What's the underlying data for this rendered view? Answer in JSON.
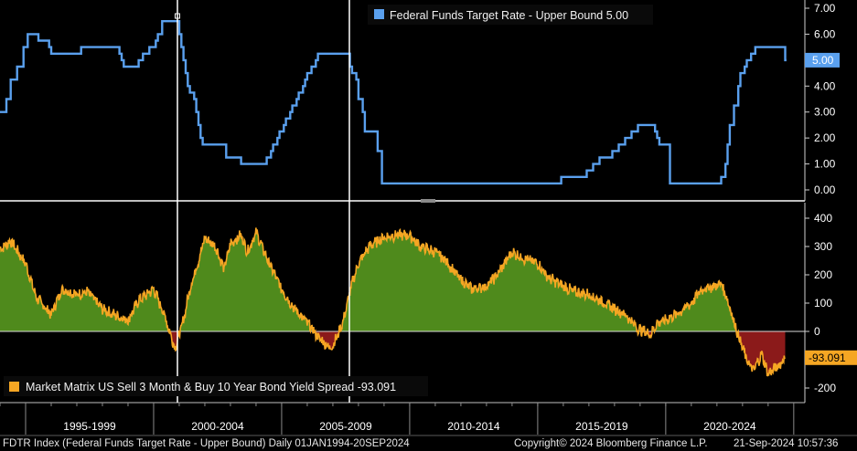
{
  "chart_data": [
    {
      "type": "line",
      "legend": "Federal Funds Target Rate - Upper Bound 5.00",
      "last_value_label": "5.00",
      "color": "#5aa0ee",
      "ylim": [
        -0.3,
        7.05
      ],
      "yticks": [
        "7.00",
        "6.00",
        "5.00",
        "4.00",
        "3.00",
        "2.00",
        "1.00",
        "0.00"
      ],
      "ytick_values": [
        7,
        6,
        5,
        4,
        3,
        2,
        1,
        0
      ],
      "x": [
        "1994-01",
        "1994-04",
        "1994-06",
        "1994-09",
        "1994-12",
        "1995-02",
        "1995-07",
        "1995-12",
        "1996-01",
        "1997-03",
        "1998-09",
        "1998-10",
        "1998-11",
        "1999-06",
        "1999-08",
        "1999-11",
        "2000-02",
        "2000-03",
        "2000-05",
        "2001-01",
        "2001-02",
        "2001-03",
        "2001-04",
        "2001-05",
        "2001-06",
        "2001-08",
        "2001-09",
        "2001-10",
        "2001-11",
        "2001-12",
        "2002-11",
        "2003-06",
        "2004-06",
        "2004-08",
        "2004-09",
        "2004-11",
        "2004-12",
        "2005-02",
        "2005-03",
        "2005-05",
        "2005-06",
        "2005-08",
        "2005-09",
        "2005-11",
        "2005-12",
        "2006-01",
        "2006-03",
        "2006-05",
        "2006-06",
        "2007-09",
        "2007-10",
        "2007-12",
        "2008-01",
        "2008-03",
        "2008-04",
        "2008-10",
        "2008-12",
        "2015-12",
        "2016-12",
        "2017-03",
        "2017-06",
        "2017-12",
        "2018-03",
        "2018-06",
        "2018-09",
        "2018-12",
        "2019-08",
        "2019-09",
        "2019-10",
        "2020-03",
        "2022-03",
        "2022-05",
        "2022-06",
        "2022-07",
        "2022-09",
        "2022-11",
        "2022-12",
        "2023-02",
        "2023-03",
        "2023-05",
        "2023-07",
        "2024-09"
      ],
      "values": [
        3.0,
        3.5,
        4.25,
        4.75,
        5.5,
        6.0,
        5.75,
        5.5,
        5.25,
        5.5,
        5.25,
        5.0,
        4.75,
        5.0,
        5.25,
        5.5,
        5.75,
        6.0,
        6.5,
        6.0,
        5.5,
        5.0,
        4.5,
        4.0,
        3.75,
        3.5,
        3.0,
        2.5,
        2.0,
        1.75,
        1.25,
        1.0,
        1.25,
        1.5,
        1.75,
        2.0,
        2.25,
        2.5,
        2.75,
        3.0,
        3.25,
        3.5,
        3.75,
        4.0,
        4.25,
        4.5,
        4.75,
        5.0,
        5.25,
        4.75,
        4.5,
        4.25,
        3.5,
        3.0,
        2.25,
        1.5,
        0.25,
        0.5,
        0.75,
        1.0,
        1.25,
        1.5,
        1.75,
        2.0,
        2.25,
        2.5,
        2.25,
        2.0,
        1.75,
        0.25,
        0.5,
        1.0,
        1.75,
        2.5,
        3.25,
        4.0,
        4.5,
        4.75,
        5.0,
        5.25,
        5.5,
        5.0
      ]
    },
    {
      "type": "area",
      "legend": "Market Matrix US Sell 3 Month & Buy 10 Year Bond Yield Spread -93.091",
      "last_value_label": "-93.091",
      "color": "#f5a623",
      "positive_fill": "#4f8a1c",
      "negative_fill": "#8b1a1a",
      "ylim": [
        -240,
        420
      ],
      "yticks": [
        "400",
        "300",
        "200",
        "100",
        "0",
        "-100",
        "-200"
      ],
      "ytick_values": [
        400,
        300,
        200,
        100,
        0,
        -100,
        -200
      ],
      "x": [
        "1994-01",
        "1994-06",
        "1995-01",
        "1995-06",
        "1996-01",
        "1996-06",
        "1997-01",
        "1997-06",
        "1998-01",
        "1998-06",
        "1999-01",
        "1999-06",
        "2000-01",
        "2000-06",
        "2000-11",
        "2001-03",
        "2001-06",
        "2001-10",
        "2002-01",
        "2002-06",
        "2002-10",
        "2003-01",
        "2003-06",
        "2003-09",
        "2004-01",
        "2004-06",
        "2005-01",
        "2005-06",
        "2006-01",
        "2006-06",
        "2006-12",
        "2007-03",
        "2007-06",
        "2007-10",
        "2008-01",
        "2008-06",
        "2008-12",
        "2009-06",
        "2010-01",
        "2010-06",
        "2011-01",
        "2011-06",
        "2011-12",
        "2012-06",
        "2013-01",
        "2013-06",
        "2014-01",
        "2014-06",
        "2015-01",
        "2015-06",
        "2016-01",
        "2016-06",
        "2017-01",
        "2017-06",
        "2018-01",
        "2018-06",
        "2018-12",
        "2019-06",
        "2019-09",
        "2020-01",
        "2020-03",
        "2020-06",
        "2021-01",
        "2021-06",
        "2021-12",
        "2022-03",
        "2022-06",
        "2022-10",
        "2023-01",
        "2023-03",
        "2023-06",
        "2023-10",
        "2024-01",
        "2024-06",
        "2024-09"
      ],
      "values": [
        290,
        320,
        240,
        120,
        60,
        150,
        130,
        140,
        80,
        60,
        40,
        110,
        150,
        60,
        -60,
        40,
        150,
        250,
        330,
        300,
        220,
        310,
        340,
        280,
        350,
        260,
        150,
        90,
        30,
        -20,
        -60,
        -20,
        40,
        170,
        240,
        300,
        330,
        340,
        340,
        300,
        280,
        250,
        190,
        150,
        160,
        200,
        280,
        260,
        240,
        190,
        160,
        140,
        130,
        110,
        80,
        60,
        10,
        -10,
        30,
        40,
        50,
        60,
        100,
        150,
        160,
        170,
        110,
        10,
        -60,
        -100,
        -140,
        -80,
        -150,
        -120,
        -93
      ]
    }
  ],
  "x_axis": {
    "labels": [
      "1995-1999",
      "2000-2004",
      "2005-2009",
      "2010-2014",
      "2015-2019",
      "2020-2024"
    ]
  },
  "footer": {
    "left": "FDTR Index (Federal Funds Target Rate - Upper Bound)  Daily 01JAN1994-20SEP2024",
    "center": "Copyright© 2024 Bloomberg Finance L.P.",
    "right": "21-Sep-2024 10:57:36"
  }
}
